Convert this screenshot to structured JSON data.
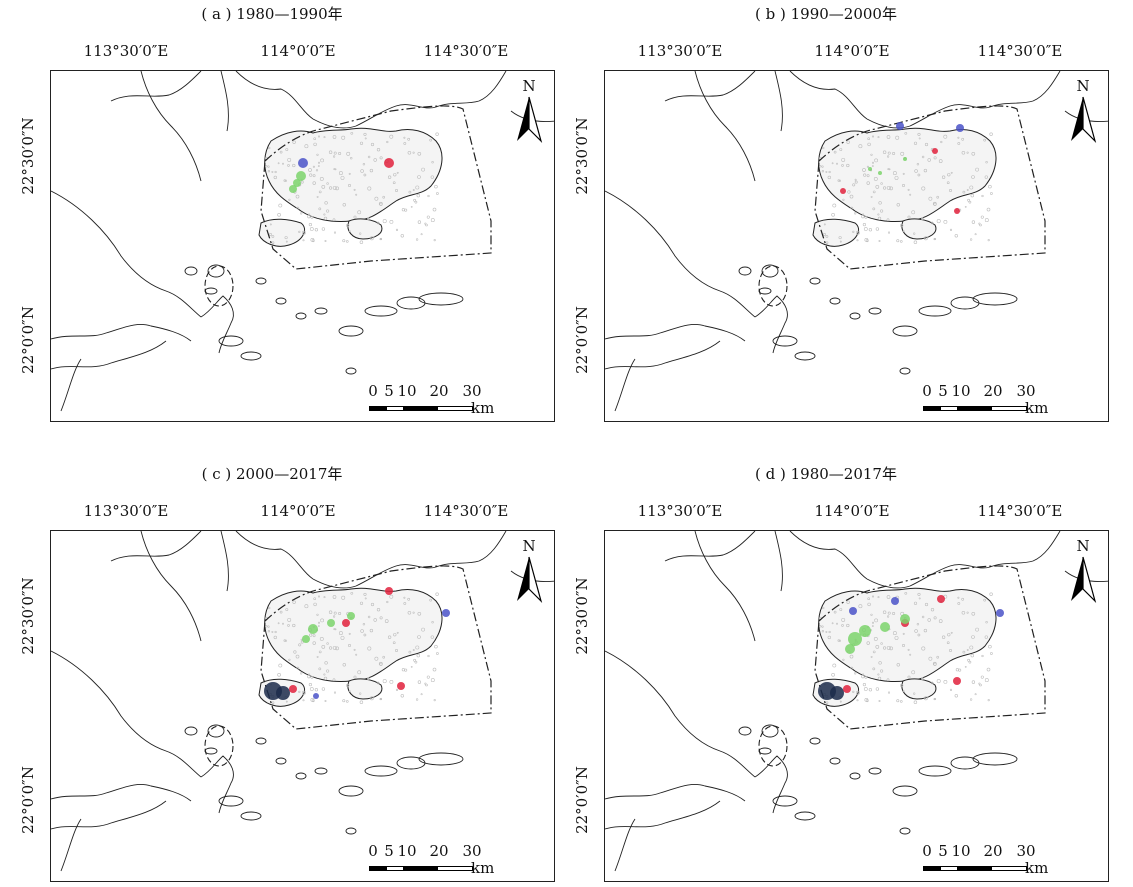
{
  "panels": [
    {
      "title": "( a ) 1980—1990年",
      "lon_labels": [
        "113°30′0″E",
        "114°0′0″E",
        "114°30′0″E"
      ],
      "lat_labels": [
        "22°30′0″N",
        "22°0′0″N"
      ],
      "north_label": "N",
      "scale_ticks": [
        "0",
        "5",
        "10",
        "20",
        "30"
      ],
      "scale_unit": "km"
    },
    {
      "title": "( b ) 1990—2000年",
      "lon_labels": [
        "113°30′0″E",
        "114°0′0″E",
        "114°30′0″E"
      ],
      "lat_labels": [
        "22°30′0″N",
        "22°0′0″N"
      ],
      "north_label": "N",
      "scale_ticks": [
        "0",
        "5",
        "10",
        "20",
        "30"
      ],
      "scale_unit": "km"
    },
    {
      "title": "( c ) 2000—2017年",
      "lon_labels": [
        "113°30′0″E",
        "114°0′0″E",
        "114°30′0″E"
      ],
      "lat_labels": [
        "22°30′0″N",
        "22°0′0″N"
      ],
      "north_label": "N",
      "scale_ticks": [
        "0",
        "5",
        "10",
        "20",
        "30"
      ],
      "scale_unit": "km"
    },
    {
      "title": "( d ) 1980—2017年",
      "lon_labels": [
        "113°30′0″E",
        "114°0′0″E",
        "114°30′0″E"
      ],
      "lat_labels": [
        "22°30′0″N",
        "22°0′0″N"
      ],
      "north_label": "N",
      "scale_ticks": [
        "0",
        "5",
        "10",
        "20",
        "30"
      ],
      "scale_unit": "km"
    }
  ],
  "colors": {
    "coastline": "#222222",
    "urban_texture": "#bdbdbd",
    "change_green": "#7bd36b",
    "change_red": "#e0213c",
    "change_blue": "#4a52c8",
    "change_navy": "#1b2a4a"
  }
}
